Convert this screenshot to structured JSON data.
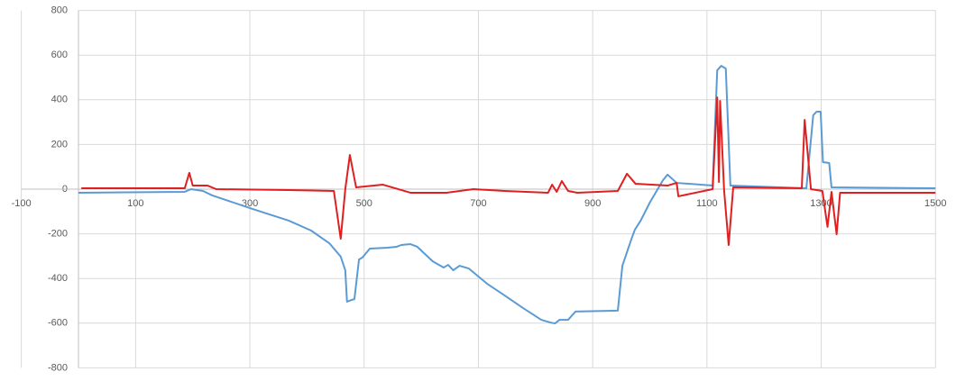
{
  "chart_data": {
    "type": "line",
    "xlim": [
      -100,
      1500
    ],
    "xticks": [
      -100,
      100,
      300,
      500,
      700,
      900,
      1100,
      1300,
      1500
    ],
    "ylim": [
      -800,
      800
    ],
    "yticks": [
      -800,
      -600,
      -400,
      -200,
      0,
      200,
      400,
      600,
      800
    ],
    "grid": true,
    "series": [
      {
        "color": "#5b9bd5",
        "x": [
          0,
          186,
          197,
          218,
          234,
          305,
          368,
          407,
          439,
          459,
          467,
          470,
          478,
          483,
          491,
          497,
          510,
          541,
          557,
          565,
          581,
          593,
          620,
          639,
          647,
          656,
          667,
          683,
          715,
          746,
          778,
          810,
          826,
          834,
          842,
          857,
          870,
          944,
          952,
          968,
          974,
          984,
          1000,
          1023,
          1031,
          1047,
          1110,
          1118,
          1125,
          1133,
          1141,
          1274,
          1286,
          1292,
          1299,
          1303,
          1314,
          1318,
          1500
        ],
        "values": [
          -16,
          -12,
          0,
          -8,
          -28,
          -89,
          -141,
          -185,
          -242,
          -302,
          -363,
          -504,
          -496,
          -492,
          -315,
          -306,
          -266,
          -262,
          -258,
          -250,
          -246,
          -258,
          -323,
          -351,
          -339,
          -363,
          -343,
          -355,
          -423,
          -476,
          -532,
          -585,
          -597,
          -601,
          -585,
          -585,
          -548,
          -544,
          -343,
          -222,
          -181,
          -141,
          -60,
          40,
          65,
          28,
          16,
          532,
          552,
          540,
          16,
          4,
          331,
          347,
          347,
          121,
          117,
          8,
          4
        ]
      },
      {
        "color": "#e02020",
        "x": [
          5,
          186,
          194,
          200,
          226,
          241,
          368,
          447,
          459,
          467,
          475,
          486,
          533,
          581,
          644,
          691,
          746,
          822,
          829,
          837,
          846,
          857,
          873,
          944,
          960,
          975,
          1031,
          1047,
          1050,
          1110,
          1118,
          1121,
          1123,
          1130,
          1138,
          1146,
          1266,
          1271,
          1282,
          1302,
          1311,
          1318,
          1327,
          1333,
          1500
        ],
        "values": [
          4,
          4,
          73,
          16,
          16,
          0,
          -4,
          -8,
          -222,
          0,
          153,
          8,
          20,
          -16,
          -16,
          0,
          -8,
          -16,
          20,
          -12,
          36,
          -8,
          -16,
          -8,
          69,
          24,
          16,
          28,
          -32,
          0,
          411,
          32,
          395,
          -4,
          -250,
          8,
          4,
          310,
          0,
          -8,
          -169,
          -12,
          -202,
          -16,
          -16
        ]
      }
    ]
  }
}
